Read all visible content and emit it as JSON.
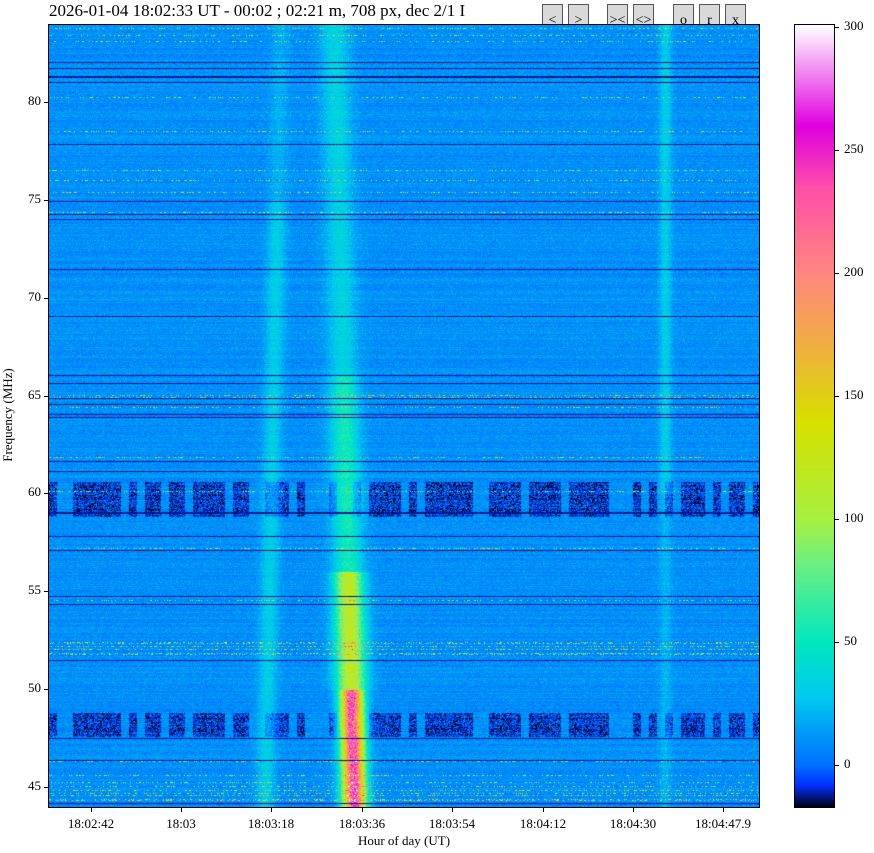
{
  "title": "2026-01-04 18:02:33 UT - 00:02 ; 02:21 m, 708 px, dec 2/1 I",
  "buttons": [
    {
      "label": "<",
      "name": "prev-button"
    },
    {
      "label": ">",
      "name": "next-button"
    },
    {
      "label": "><",
      "name": "zoom-in-button"
    },
    {
      "label": "<>",
      "name": "zoom-out-button"
    },
    {
      "label": "o",
      "name": "o-button"
    },
    {
      "label": "r",
      "name": "r-button"
    },
    {
      "label": "x",
      "name": "close-button"
    }
  ],
  "chart_data": {
    "type": "heatmap",
    "title": "2026-01-04 18:02:33 UT - 00:02 ; 02:21 m, 708 px, dec 2/1 I",
    "xlabel": "Hour of day (UT)",
    "ylabel": "Frequency (MHz)",
    "x_ticks": [
      "18:02:42",
      "18:03",
      "18:03:18",
      "18:03:36",
      "18:03:54",
      "18:04:12",
      "18:04:30",
      "18:04:47.9"
    ],
    "y_ticks": [
      45,
      50,
      55,
      60,
      65,
      70,
      75,
      80
    ],
    "ylim": [
      44,
      84
    ],
    "colorbar": {
      "ticks": [
        0,
        50,
        100,
        150,
        200,
        250,
        300
      ],
      "range": [
        -17,
        301
      ],
      "colormap": "gist_ncar",
      "colors": [
        "#000010",
        "#0030ff",
        "#0070ff",
        "#00c8f0",
        "#00e8c0",
        "#70f080",
        "#a8f040",
        "#d8e000",
        "#f0b040",
        "#ff8880",
        "#ff50a8",
        "#e000e0",
        "#ffffff"
      ]
    }
  }
}
